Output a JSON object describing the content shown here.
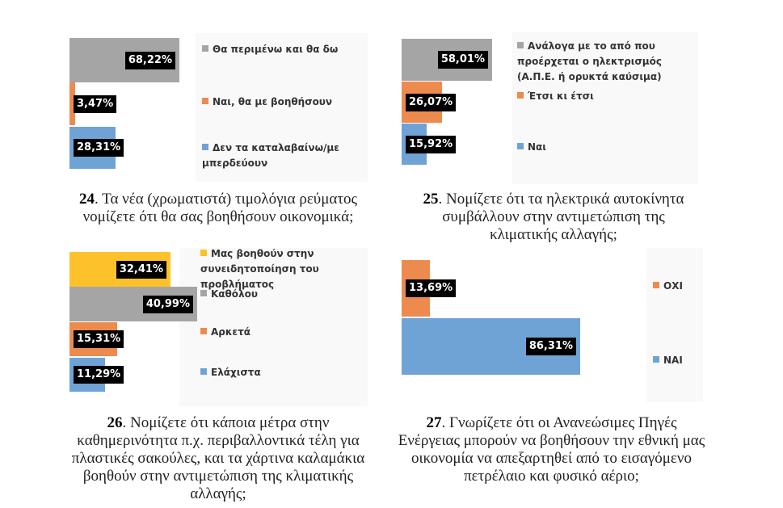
{
  "chart_data": [
    {
      "type": "bar",
      "orientation": "horizontal",
      "number": "24",
      "title": "Τα νέα (χρωματιστά) τιμολόγια ρεύματος νομίζετε ότι θα σας βοηθήσουν οικονομικά;",
      "categories": [
        "Θα περιμένω και θα δω",
        "Ναι, θα με βοηθήσουν",
        "Δεν τα καταλαβαίνω/με μπερδεύουν"
      ],
      "values": [
        68.22,
        3.47,
        28.31
      ],
      "labels": [
        "68,22%",
        "3,47%",
        "28,31%"
      ],
      "colors": [
        "#a5a5a5",
        "#ed8b4f",
        "#6fa3d6"
      ],
      "legend": "right"
    },
    {
      "type": "bar",
      "orientation": "horizontal",
      "number": "25",
      "title": "Νομίζετε ότι τα ηλεκτρικά αυτοκίνητα συμβάλλουν στην αντιμετώπιση της κλιματικής αλλαγής;",
      "categories": [
        "Ανάλογα με το από που προέρχεται ο ηλεκτρισμός (Α.Π.Ε. ή ορυκτά καύσιμα)",
        "Έτσι κι έτσι",
        "Ναι"
      ],
      "values": [
        58.01,
        26.07,
        15.92
      ],
      "labels": [
        "58,01%",
        "26,07%",
        "15,92%"
      ],
      "colors": [
        "#a5a5a5",
        "#ed8b4f",
        "#6fa3d6"
      ],
      "legend": "right"
    },
    {
      "type": "bar",
      "orientation": "horizontal",
      "number": "26",
      "title": "Νομίζετε ότι κάποια μέτρα στην καθημερινότητα π.χ. περιβαλλοντικά τέλη για πλαστικές σακούλες, και τα χάρτινα καλαμάκια βοηθούν στην αντιμετώπιση της κλιματικής αλλαγής;",
      "categories": [
        "Μας βοηθούν στην συνειδητοποίηση του προβλήματος",
        "Καθόλου",
        "Αρκετά",
        "Ελάχιστα"
      ],
      "values": [
        32.41,
        40.99,
        15.31,
        11.29
      ],
      "labels": [
        "32,41%",
        "40,99%",
        "15,31%",
        "11,29%"
      ],
      "colors": [
        "#fdc22a",
        "#a5a5a5",
        "#ed8b4f",
        "#6fa3d6"
      ],
      "legend": "right"
    },
    {
      "type": "bar",
      "orientation": "horizontal",
      "number": "27",
      "title": "Γνωρίζετε ότι οι Ανανεώσιμες Πηγές Ενέργειας μπορούν να βοηθήσουν την εθνική μας οικονομία να απεξαρτηθεί από το εισαγόμενο πετρέλαιο και φυσικό αέριο;",
      "categories": [
        "ΟΧΙ",
        "ΝΑΙ"
      ],
      "values": [
        13.69,
        86.31
      ],
      "labels": [
        "13,69%",
        "86,31%"
      ],
      "colors": [
        "#ed8b4f",
        "#6fa3d6"
      ],
      "legend": "right"
    }
  ]
}
